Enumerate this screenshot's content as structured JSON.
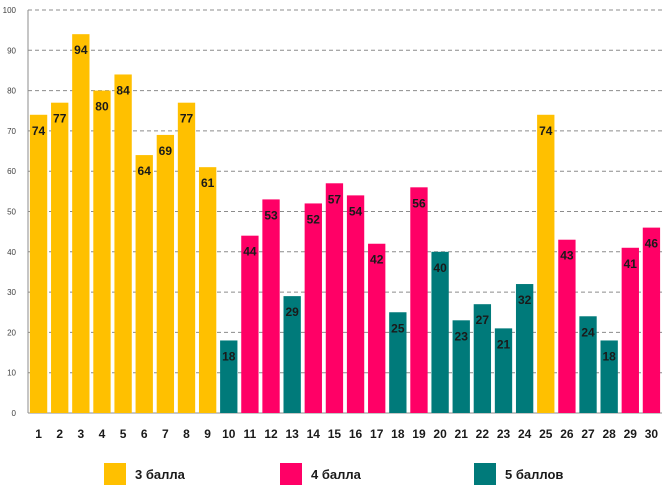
{
  "chart_data": {
    "type": "bar",
    "title": "",
    "xlabel": "",
    "ylabel": "",
    "ylim": [
      0,
      100
    ],
    "ytick_step": 10,
    "grid": true,
    "categories": [
      "1",
      "2",
      "3",
      "4",
      "5",
      "6",
      "7",
      "8",
      "9",
      "10",
      "11",
      "12",
      "13",
      "14",
      "15",
      "16",
      "17",
      "18",
      "19",
      "20",
      "21",
      "22",
      "23",
      "24",
      "25",
      "26",
      "27",
      "28",
      "29",
      "30"
    ],
    "values": [
      74,
      77,
      94,
      80,
      84,
      64,
      69,
      77,
      61,
      18,
      44,
      53,
      29,
      52,
      57,
      54,
      42,
      25,
      56,
      40,
      23,
      27,
      21,
      32,
      74,
      43,
      24,
      18,
      41,
      46
    ],
    "groups": [
      "3",
      "3",
      "3",
      "3",
      "3",
      "3",
      "3",
      "3",
      "3",
      "5",
      "4",
      "4",
      "5",
      "4",
      "4",
      "4",
      "4",
      "5",
      "4",
      "5",
      "5",
      "5",
      "5",
      "5",
      "3",
      "4",
      "5",
      "5",
      "4",
      "4"
    ],
    "legend": [
      {
        "key": "3",
        "label": "3 балла",
        "color": "#ffc000"
      },
      {
        "key": "4",
        "label": "4 балла",
        "color": "#ff0066"
      },
      {
        "key": "5",
        "label": "5 баллов",
        "color": "#007a7a"
      }
    ],
    "legend_position": "bottom"
  }
}
